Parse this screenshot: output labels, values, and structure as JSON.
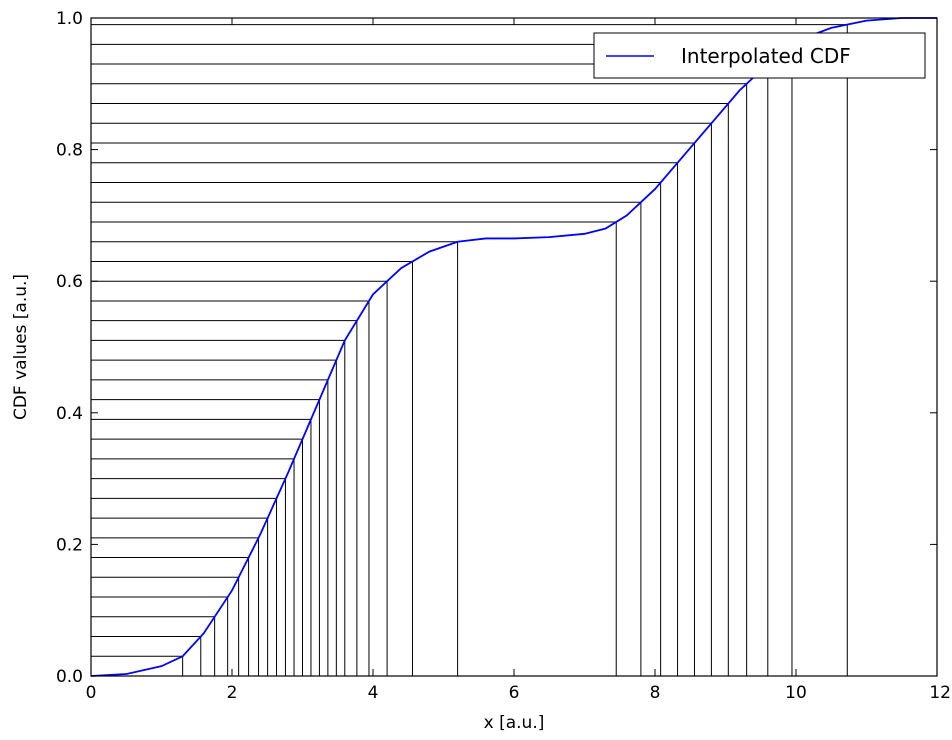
{
  "chart_data": {
    "type": "line",
    "title": "",
    "xlabel": "x [a.u.]",
    "ylabel": "CDF values [a.u.]",
    "xlim": [
      0,
      12
    ],
    "ylim": [
      0,
      1.0
    ],
    "x_ticks": [
      0,
      2,
      4,
      6,
      8,
      10,
      12
    ],
    "y_ticks": [
      0.0,
      0.2,
      0.4,
      0.6,
      0.8,
      1.0
    ],
    "x_tick_labels": [
      "0",
      "2",
      "4",
      "6",
      "8",
      "10",
      "12"
    ],
    "y_tick_labels": [
      "0.0",
      "0.2",
      "0.4",
      "0.6",
      "0.8",
      "1.0"
    ],
    "grid": false,
    "legend": {
      "position": "top-right",
      "entries": [
        "Interpolated CDF"
      ]
    },
    "series": [
      {
        "name": "Interpolated CDF",
        "color": "#0000ff",
        "x": [
          0,
          0.5,
          1.0,
          1.3,
          1.6,
          2.0,
          2.4,
          2.8,
          3.2,
          3.6,
          4.0,
          4.4,
          4.8,
          5.2,
          5.6,
          6.0,
          6.5,
          7.0,
          7.3,
          7.6,
          8.0,
          8.4,
          8.8,
          9.2,
          9.6,
          10.0,
          10.5,
          11.0,
          11.5,
          12.0
        ],
        "y": [
          0.0,
          0.003,
          0.015,
          0.03,
          0.065,
          0.13,
          0.215,
          0.31,
          0.41,
          0.51,
          0.58,
          0.62,
          0.645,
          0.66,
          0.665,
          0.665,
          0.667,
          0.672,
          0.68,
          0.7,
          0.74,
          0.79,
          0.84,
          0.89,
          0.93,
          0.965,
          0.985,
          0.996,
          1.0,
          1.0
        ]
      }
    ],
    "grid_lines": {
      "color": "#000000",
      "levels": [
        0.03,
        0.06,
        0.09,
        0.12,
        0.15,
        0.18,
        0.21,
        0.24,
        0.27,
        0.3,
        0.33,
        0.36,
        0.39,
        0.42,
        0.45,
        0.48,
        0.51,
        0.54,
        0.57,
        0.6,
        0.63,
        0.66,
        0.69,
        0.72,
        0.75,
        0.78,
        0.81,
        0.84,
        0.87,
        0.9,
        0.93,
        0.96,
        0.99
      ]
    }
  }
}
